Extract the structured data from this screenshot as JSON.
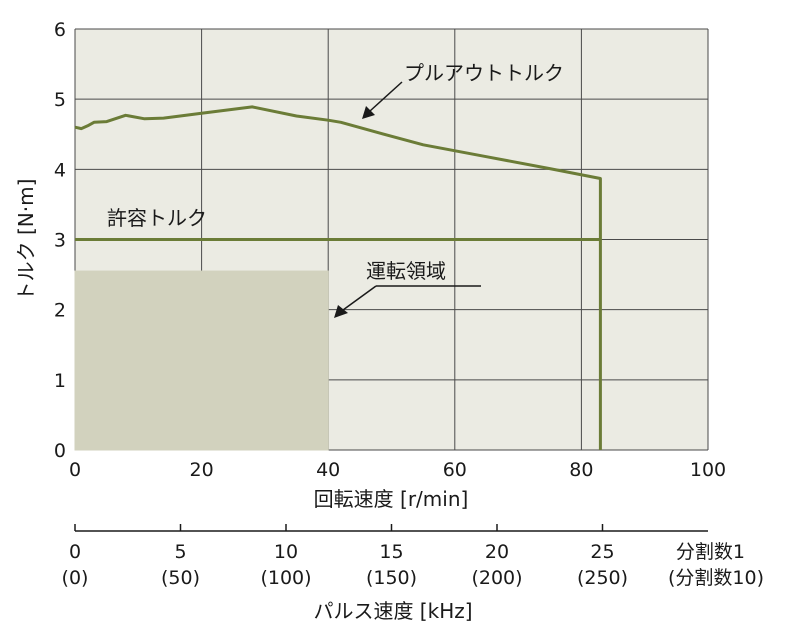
{
  "chart_data": {
    "type": "line",
    "xlabel": "回転速度 [r/min]",
    "ylabel": "トルク [N·m]",
    "xlim": [
      0,
      100
    ],
    "ylim": [
      0,
      6
    ],
    "x_ticks": [
      "0",
      "20",
      "40",
      "60",
      "80",
      "100"
    ],
    "y_ticks": [
      "0",
      "1",
      "2",
      "3",
      "4",
      "5",
      "6"
    ],
    "grid": true,
    "colors": {
      "plot_bg": "#ebebe3",
      "line": "#6b7c37",
      "region": "#d2d2be"
    },
    "series": [
      {
        "name": "プルアウトトルク",
        "x": [
          0,
          1,
          2,
          3,
          5,
          8,
          11,
          14,
          20,
          28,
          35,
          40,
          42,
          48,
          55,
          65,
          75,
          83,
          83
        ],
        "y": [
          4.6,
          4.58,
          4.62,
          4.67,
          4.68,
          4.77,
          4.72,
          4.73,
          4.8,
          4.89,
          4.76,
          4.7,
          4.67,
          4.52,
          4.35,
          4.18,
          4.01,
          3.87,
          0
        ]
      },
      {
        "name": "許容トルク",
        "x": [
          0,
          83
        ],
        "y": [
          3,
          3
        ]
      }
    ],
    "regions": [
      {
        "name": "運転領域",
        "x": [
          0,
          40
        ],
        "y": [
          0,
          2.55
        ]
      }
    ],
    "secondary_axis": {
      "xlabel": "パルス速度 [kHz]",
      "ticks": [
        {
          "value": 0,
          "label": "0",
          "label2": "(0)"
        },
        {
          "value": 5,
          "label": "5",
          "label2": "(50)"
        },
        {
          "value": 10,
          "label": "10",
          "label2": "(100)"
        },
        {
          "value": 15,
          "label": "15",
          "label2": "(150)"
        },
        {
          "value": 20,
          "label": "20",
          "label2": "(200)"
        },
        {
          "value": 25,
          "label": "25",
          "label2": "(250)"
        }
      ],
      "range_max": 30,
      "end_label": "分割数1",
      "end_label2": "(分割数10)"
    }
  }
}
